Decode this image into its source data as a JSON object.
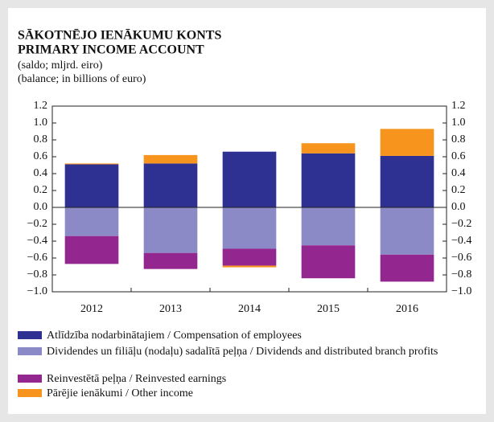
{
  "chart_data": {
    "type": "bar",
    "stacked": true,
    "title": [
      "SĀKOTNĒJO IENĀKUMU KONTS",
      "PRIMARY INCOME ACCOUNT"
    ],
    "subtitle": [
      "(saldo; mljrd. eiro)",
      "(balance; in billions of euro)"
    ],
    "categories": [
      "2012",
      "2013",
      "2014",
      "2015",
      "2016"
    ],
    "series": [
      {
        "name": "Atlīdzība nodarbinātajiem / Compensation of employees",
        "color": "#2e3192",
        "values": [
          0.51,
          0.52,
          0.66,
          0.64,
          0.61
        ]
      },
      {
        "name": "Dividendes un filiāļu (nodaļu) sadalītā peļņa / Dividends and distributed branch profits",
        "color": "#8b89c6",
        "values": [
          -0.34,
          -0.54,
          -0.49,
          -0.45,
          -0.56
        ]
      },
      {
        "name": "Reinvestētā peļņa / Reinvested earnings",
        "color": "#93278f",
        "values": [
          -0.33,
          -0.19,
          -0.2,
          -0.39,
          -0.32
        ]
      },
      {
        "name": "Pārējie ienākumi / Other income",
        "color": "#f7941d",
        "values": [
          0.01,
          0.1,
          -0.02,
          0.12,
          0.32
        ]
      }
    ],
    "ylim": [
      -1.0,
      1.2
    ],
    "yticks": [
      {
        "value": 1.2,
        "label": "1.2"
      },
      {
        "value": 1.0,
        "label": "1.0"
      },
      {
        "value": 0.8,
        "label": "0.8"
      },
      {
        "value": 0.6,
        "label": "0.6"
      },
      {
        "value": 0.4,
        "label": "0.4"
      },
      {
        "value": 0.2,
        "label": "0.2"
      },
      {
        "value": 0.0,
        "label": "0.0"
      },
      {
        "value": -0.2,
        "label": "−0.2"
      },
      {
        "value": -0.4,
        "label": "−0.4"
      },
      {
        "value": -0.6,
        "label": "−0.6"
      },
      {
        "value": -0.8,
        "label": "−0.8"
      },
      {
        "value": -1.0,
        "label": "−1.0"
      }
    ],
    "y2lim": [
      -1.0,
      1.2
    ],
    "y2ticks": [
      {
        "value": 1.2,
        "label": "1.2"
      },
      {
        "value": 1.0,
        "label": "1.0"
      },
      {
        "value": 0.8,
        "label": "0.8"
      },
      {
        "value": 0.6,
        "label": "0.6"
      },
      {
        "value": 0.4,
        "label": "0.4"
      },
      {
        "value": 0.2,
        "label": "0.2"
      },
      {
        "value": 0.0,
        "label": "0.0"
      },
      {
        "value": -0.2,
        "label": "−0.2"
      },
      {
        "value": -0.4,
        "label": "−0.4"
      },
      {
        "value": -0.6,
        "label": "−0.6"
      },
      {
        "value": -0.8,
        "label": "−0.8"
      },
      {
        "value": -1.0,
        "label": "−1.0"
      }
    ],
    "grid": false
  }
}
